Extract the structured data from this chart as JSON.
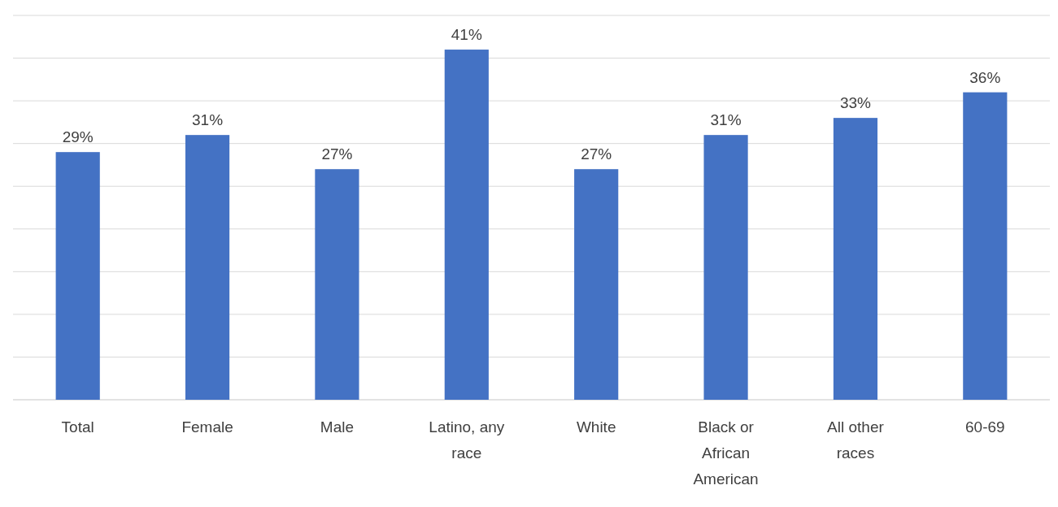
{
  "chart_data": {
    "type": "bar",
    "categories": [
      "Total",
      "Female",
      "Male",
      "Latino, any race",
      "White",
      "Black or African American",
      "All other races",
      "60-69"
    ],
    "values": [
      29,
      31,
      27,
      41,
      27,
      31,
      33,
      36
    ],
    "value_labels": [
      "29%",
      "31%",
      "27%",
      "41%",
      "27%",
      "31%",
      "33%",
      "36%"
    ],
    "color": "#4472c4",
    "ylim": [
      0,
      45
    ],
    "yticks": [
      {
        "value": 0,
        "label": null
      },
      {
        "value": 5,
        "label": null
      },
      {
        "value": 10,
        "label": null
      },
      {
        "value": 15,
        "label": null
      },
      {
        "value": 20,
        "label": null
      },
      {
        "value": 25,
        "label": null
      },
      {
        "value": 30,
        "label": null
      },
      {
        "value": 35,
        "label": null
      },
      {
        "value": 40,
        "label": null
      },
      {
        "value": 45,
        "label": null
      }
    ],
    "grid": "y",
    "tick_labels": "x"
  }
}
